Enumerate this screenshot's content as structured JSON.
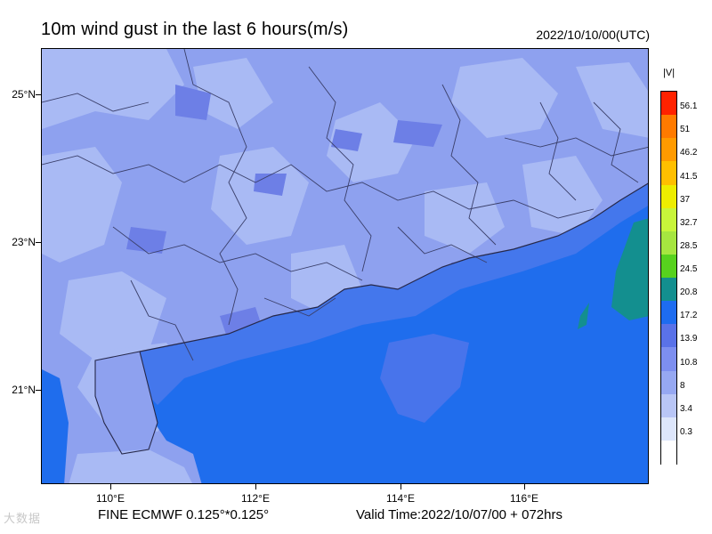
{
  "header": {
    "title": "10m wind gust in the last 6 hours(m/s)",
    "datetime": "2022/10/10/00(UTC)"
  },
  "axes": {
    "lat_labels": [
      "25°N",
      "23°N",
      "21°N"
    ],
    "lon_labels": [
      "110°E",
      "112°E",
      "114°E",
      "116°E"
    ]
  },
  "legend": {
    "title": "|V|",
    "levels": [
      "56.1",
      "51",
      "46.2",
      "41.5",
      "37",
      "32.7",
      "28.5",
      "24.5",
      "20.8",
      "17.2",
      "13.9",
      "10.8",
      "8",
      "3.4",
      "0.3"
    ],
    "colors": [
      "#ff2200",
      "#ff7a00",
      "#ff9a00",
      "#ffbf00",
      "#eded00",
      "#c8f53a",
      "#a6e640",
      "#57d21e",
      "#138f8f",
      "#1e6cf0",
      "#5a72e8",
      "#7d8ff0",
      "#96a8f2",
      "#b9c6f6",
      "#dde6fb",
      "#ffffff"
    ]
  },
  "footer": {
    "model": "FINE ECMWF 0.125°*0.125°",
    "valid_time": "Valid Time:2022/10/07/00 + 072hrs"
  },
  "watermark": "大数据"
}
